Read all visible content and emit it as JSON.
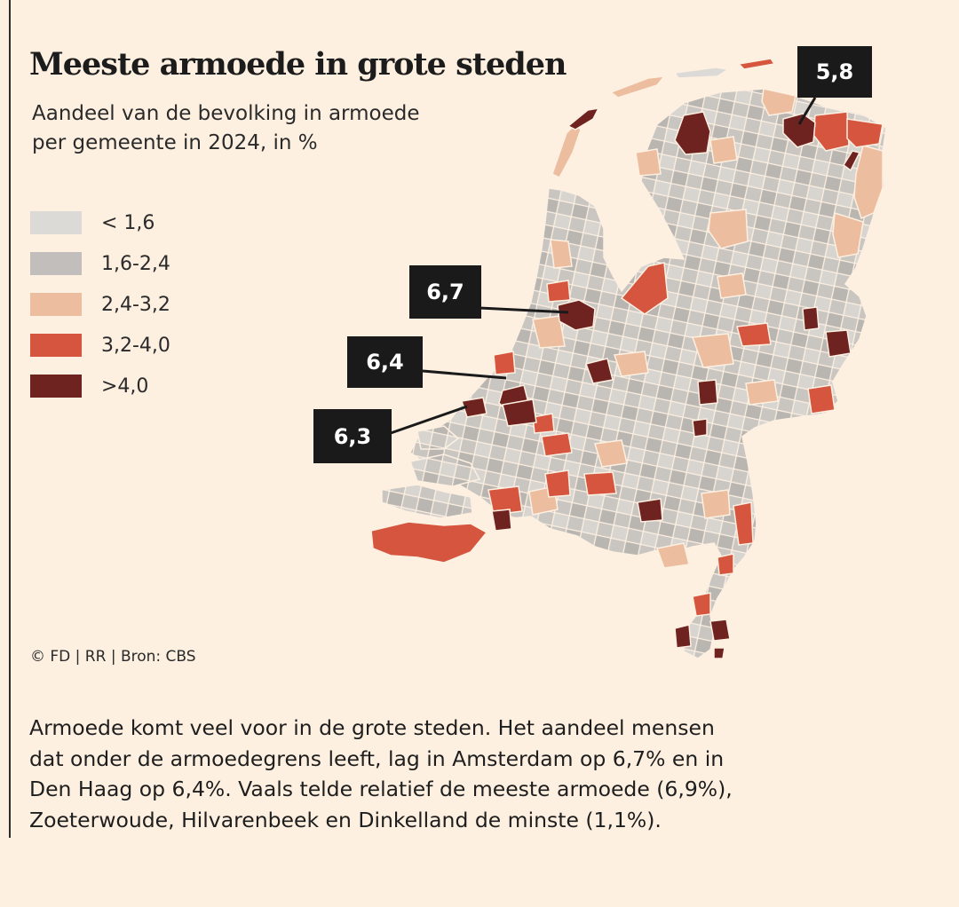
{
  "title": "Meeste armoede in grote steden",
  "subtitle": {
    "line1": "Aandeel van de bevolking in armoede",
    "line2": "per gemeente in 2024, in %"
  },
  "legend": [
    {
      "label": "< 1,6",
      "color": "#dcdad6"
    },
    {
      "label": "1,6-2,4",
      "color": "#c2bebb"
    },
    {
      "label": "2,4-3,2",
      "color": "#ecbd9f"
    },
    {
      "label": "3,2-4,0",
      "color": "#d5553f"
    },
    {
      "label": ">4,0",
      "color": "#6f2321"
    }
  ],
  "callouts": {
    "groningen": "5,8",
    "amsterdam": "6,7",
    "den_haag": "6,4",
    "rotterdam": "6,3"
  },
  "source": "© FD | RR | Bron: CBS",
  "body": {
    "line1": "Armoede komt veel voor in de grote steden. Het aandeel mensen",
    "line2": "dat onder de armoedegrens leeft, lag in Amsterdam op 6,7% en in",
    "line3": "Den Haag op 6,4%. Vaals telde relatief de meeste armoede (6,9%),",
    "line4": "Zoeterwoude, Hilvarenbeek en Dinkelland de minste (1,1%)."
  },
  "colors": {
    "background": "#fdf0e1",
    "callout_bg": "#1a1a1a"
  }
}
